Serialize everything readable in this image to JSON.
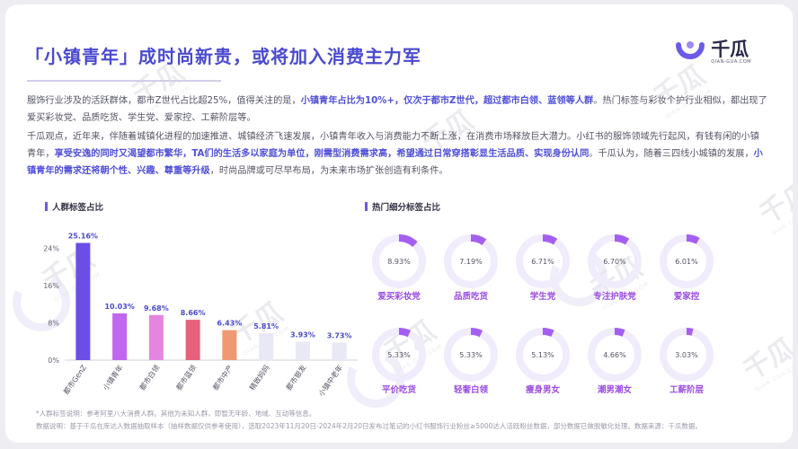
{
  "title": "「小镇青年」成时尚新贵，或将加入消费主力军",
  "logo": {
    "name": "千瓜",
    "sub": "QIAN-GUA.COM"
  },
  "watermark": {
    "text": "千瓜",
    "sub": "QIAN-GUA.COM"
  },
  "para1": [
    {
      "t": "服饰行业涉及的活跃群体，都市Z世代占比超25%，值得关注的是，",
      "hl": false
    },
    {
      "t": "小镇青年占比为10%+，仅次于都市Z世代，超过都市白领、蓝领等人群",
      "hl": true
    },
    {
      "t": "。热门标签与彩妆个护行业相似，都出现了爱买彩妆党、品质吃货、学生党、爱家控、工薪阶层等。",
      "hl": false
    }
  ],
  "para2": [
    {
      "t": "千瓜观点，近年来，伴随着城镇化进程的加速推进、城镇经济飞速发展，小镇青年收入与消费能力不断上涨，在消费市场释放巨大潜力。小红书的服饰领域先行起风，有钱有闲的小镇青年，",
      "hl": false
    },
    {
      "t": "享受安逸的同时又渴望都市繁华，TA们的生活多以家庭为单位，刚需型消费需求高，希望通过日常穿搭彰显生活品质、实现身份认同",
      "hl": true
    },
    {
      "t": "。千瓜认为，随着三四线小城镇的发展，",
      "hl": false
    },
    {
      "t": "小镇青年的需求还将朝个性、兴趣、尊重等升级",
      "hl": true
    },
    {
      "t": "，时尚品牌或可尽早布局，为未来市场扩张创造有利条件。",
      "hl": false
    }
  ],
  "left_title": "人群标签占比",
  "right_title": "热门细分标签占比",
  "colors": {
    "accent": "#5050d8",
    "ring_bg": "#f1ecfb",
    "ring_fg": "#a45ff0",
    "label": "#9a4ee0"
  },
  "chart_data": [
    {
      "type": "bar",
      "categories": [
        "都市GenZ",
        "小镇青年",
        "都市白领",
        "都市蓝领",
        "都市中产",
        "精致妈妈",
        "都市银发",
        "小镇中老年"
      ],
      "values": [
        25.16,
        10.03,
        9.68,
        8.66,
        6.43,
        5.81,
        3.93,
        3.73
      ],
      "value_labels": [
        "25.16%",
        "10.03%",
        "9.68%",
        "8.66%",
        "6.43%",
        "5.81%",
        "3.93%",
        "3.73%"
      ],
      "yticks": [
        "0%",
        "8%",
        "16%",
        "24%"
      ],
      "ylim": [
        0,
        27
      ],
      "colors": [
        "#6b4ee6",
        "#c166ee",
        "#e486e0",
        "#e8607a",
        "#f09872",
        "#e9e8f5",
        "#e9e8f5",
        "#e9e8f5"
      ],
      "title": "人群标签占比",
      "xlabel": "",
      "ylabel": ""
    },
    {
      "type": "pie",
      "layout": "donut-grid",
      "categories": [
        "爱买彩妆党",
        "品质吃货",
        "学生党",
        "专注护肤党",
        "爱家控",
        "平价吃货",
        "轻奢白领",
        "瘦身男女",
        "潮男潮女",
        "工薪阶层"
      ],
      "values": [
        8.93,
        7.19,
        6.71,
        6.7,
        6.01,
        5.33,
        5.33,
        5.13,
        4.66,
        3.03
      ],
      "value_labels": [
        "8.93%",
        "7.19%",
        "6.71%",
        "6.70%",
        "6.01%",
        "5.33%",
        "5.33%",
        "5.13%",
        "4.66%",
        "3.03%"
      ],
      "title": "热门细分标签占比"
    }
  ],
  "footnote1": "*人群标签说明：参考阿里八大消费人群。其他为未知人群，即暂无年龄、地域、互动等信息。",
  "footnote2": "数据说明：基于千瓜在库达人数据抽取样本（抽样数据仅供参考使用），选取2023年11月20日-2024年2月20日发布过笔记的小红书服饰行业粉丝≥5000达人活跃粉丝数据，部分数据已做脱敏化处理。数据来源：千瓜数据。"
}
